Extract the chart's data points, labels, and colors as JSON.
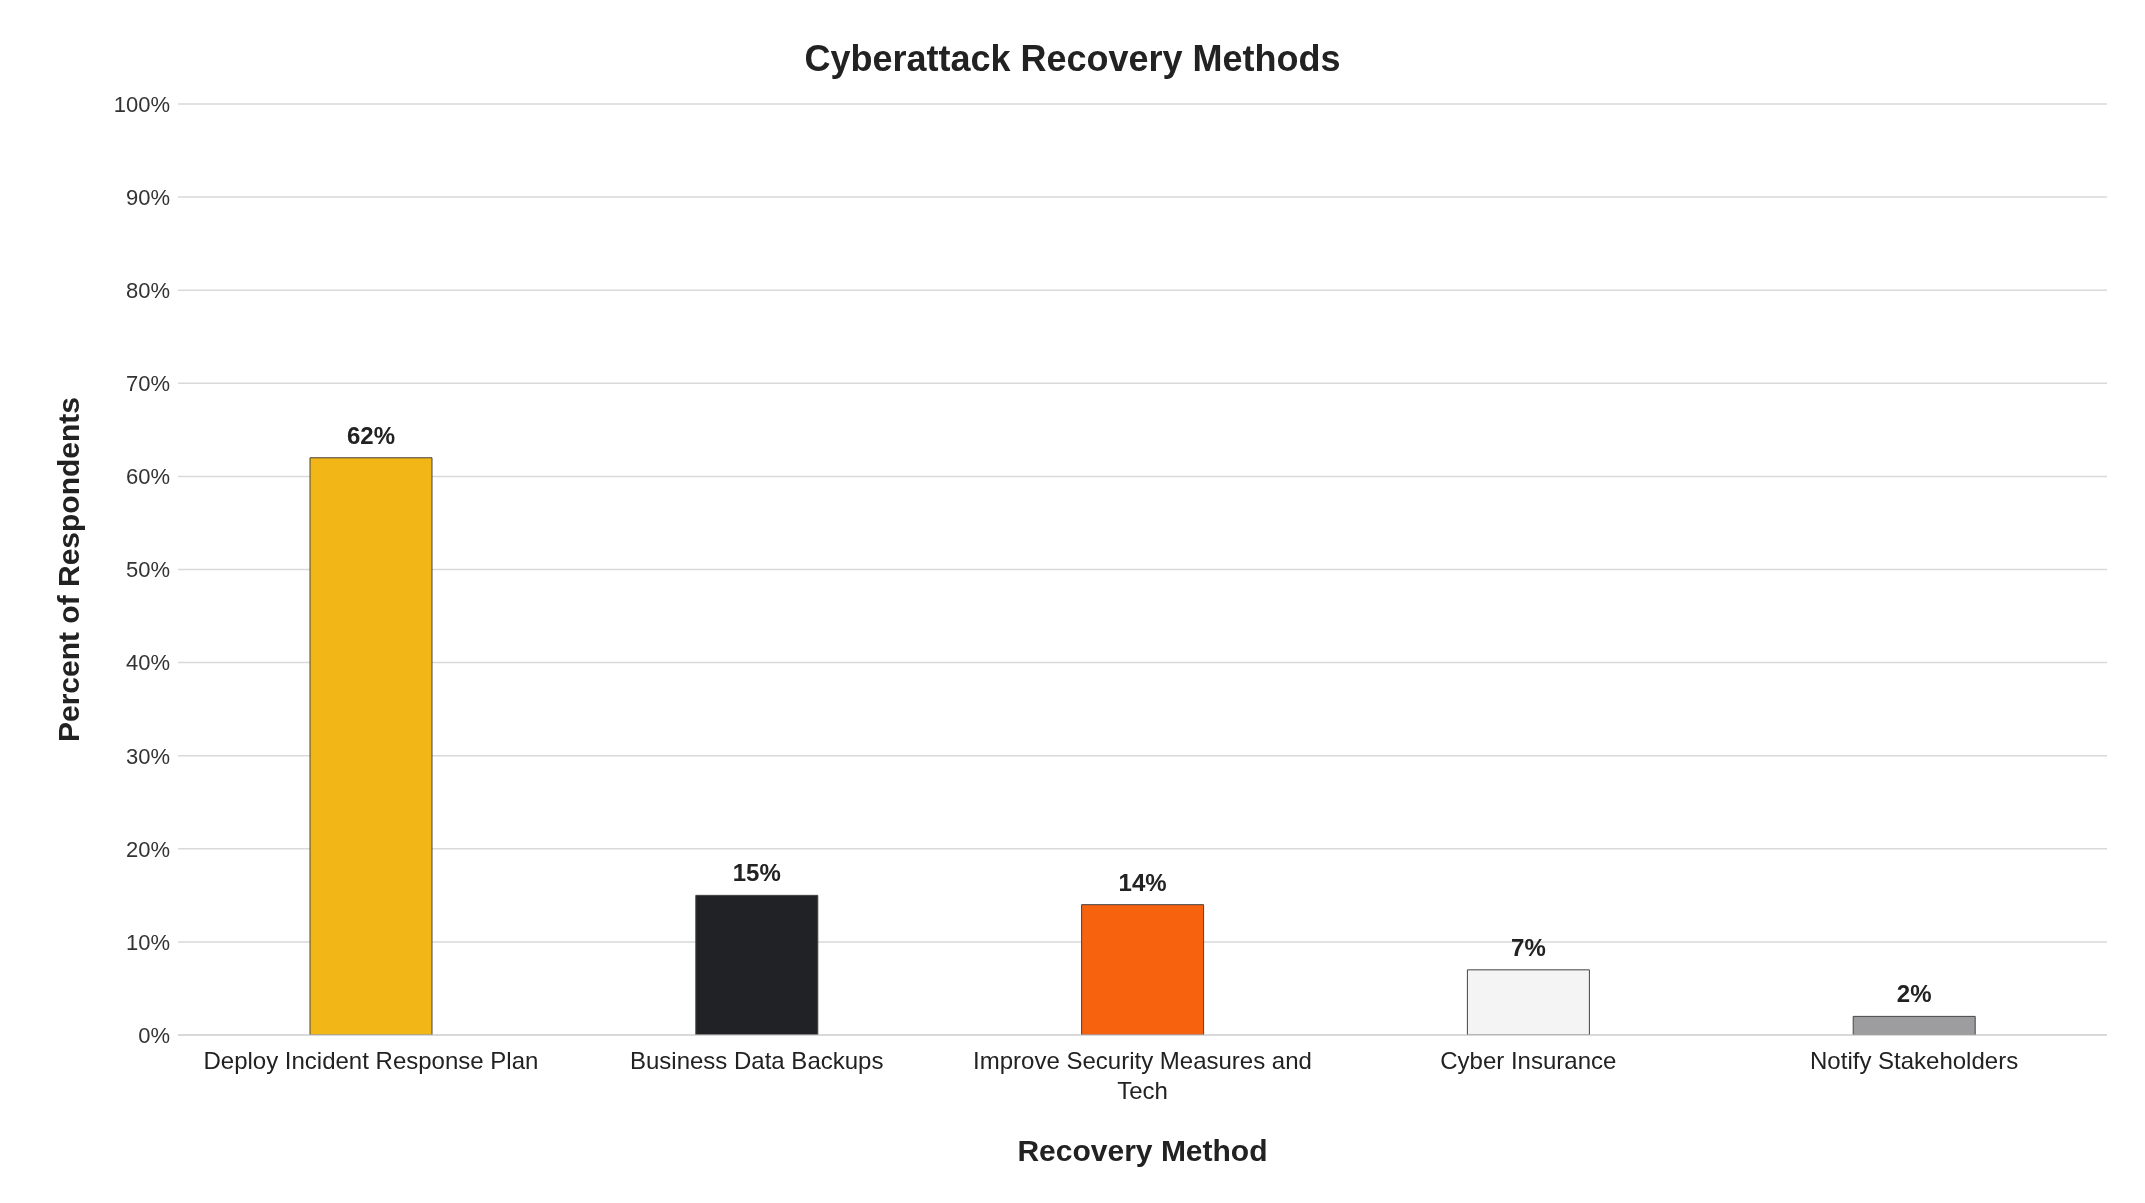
{
  "chart_data": {
    "type": "bar",
    "title": "Cyberattack Recovery Methods",
    "xlabel": "Recovery Method",
    "ylabel": "Percent of Respondents",
    "categories": [
      "Deploy Incident Response Plan",
      "Business Data Backups",
      "Improve Security Measures and Tech",
      "Cyber Insurance",
      "Notify Stakeholders"
    ],
    "values": [
      62,
      15,
      14,
      7,
      2
    ],
    "colors": [
      "#f2b616",
      "#212226",
      "#f7620f",
      "#f4f4f4",
      "#9d9da0"
    ],
    "value_labels": [
      "62%",
      "15%",
      "14%",
      "7%",
      "2%"
    ],
    "ylim": [
      0,
      100
    ],
    "yticks": [
      {
        "value": 0,
        "label": "0%"
      },
      {
        "value": 10,
        "label": "10%"
      },
      {
        "value": 20,
        "label": "20%"
      },
      {
        "value": 30,
        "label": "30%"
      },
      {
        "value": 40,
        "label": "40%"
      },
      {
        "value": 50,
        "label": "50%"
      },
      {
        "value": 60,
        "label": "60%"
      },
      {
        "value": 70,
        "label": "70%"
      },
      {
        "value": 80,
        "label": "80%"
      },
      {
        "value": 90,
        "label": "90%"
      },
      {
        "value": 100,
        "label": "100%"
      }
    ],
    "grid": "y"
  }
}
